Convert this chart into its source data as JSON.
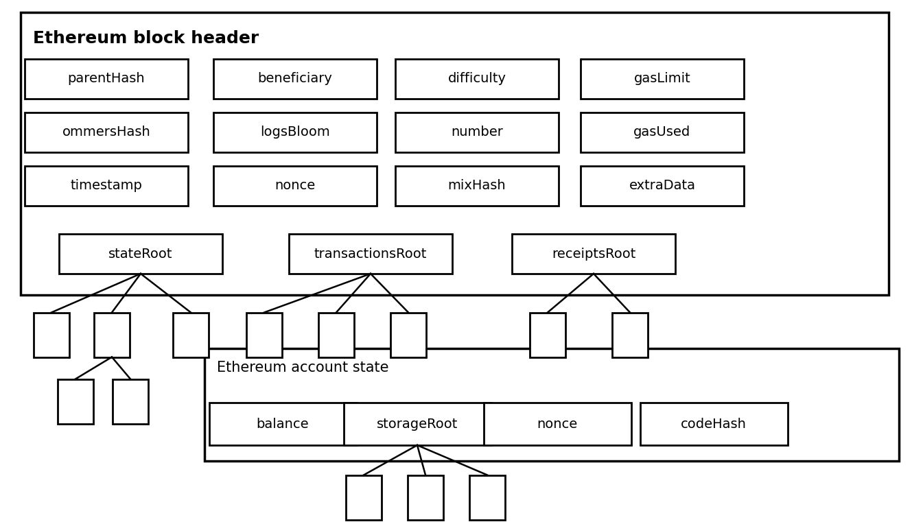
{
  "title": "Ethereum block header",
  "account_state_title": "Ethereum account state",
  "row1": [
    "parentHash",
    "beneficiary",
    "difficulty",
    "gasLimit"
  ],
  "row2": [
    "ommersHash",
    "logsBloom",
    "number",
    "gasUsed"
  ],
  "row3": [
    "timestamp",
    "nonce",
    "mixHash",
    "extraData"
  ],
  "row4": [
    "stateRoot",
    "transactionsRoot",
    "receiptsRoot"
  ],
  "account_fields": [
    "balance",
    "storageRoot",
    "nonce",
    "codeHash"
  ],
  "bg_color": "#ffffff",
  "box_color": "#ffffff",
  "border_color": "#000000",
  "text_color": "#000000",
  "font_size": 14,
  "title_font_size": 18,
  "account_title_font_size": 15
}
